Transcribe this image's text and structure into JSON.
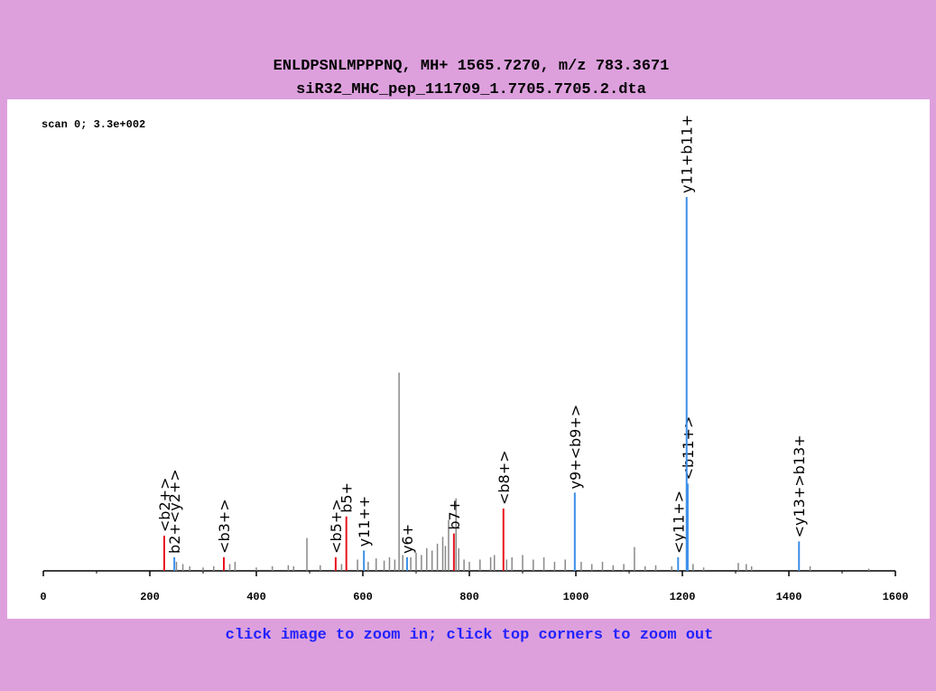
{
  "chart_data": {
    "type": "spectrum",
    "title": "ENLDPSNLMPPPNQ, MH+ 1565.7270, m/z 783.3671",
    "subtitle": "siR32_MHC_pep_111709_1.7705.7705.2.dta",
    "annotation": "scan 0; 3.3e+002",
    "footer": "click image to zoom in; click top corners to zoom out",
    "xlim": [
      0,
      1600
    ],
    "ylim": [
      0,
      330
    ],
    "xticks": [
      0,
      200,
      400,
      600,
      800,
      1000,
      1200,
      1400,
      1600
    ],
    "minor_xticks": [
      100,
      300,
      500,
      700,
      900,
      1100,
      1300,
      1500
    ],
    "x": [
      250,
      262,
      275,
      300,
      320,
      350,
      360,
      400,
      430,
      460,
      470,
      495,
      520,
      560,
      590,
      610,
      625,
      640,
      650,
      660,
      668,
      675,
      690,
      700,
      710,
      720,
      730,
      740,
      750,
      755,
      761,
      775,
      780,
      790,
      800,
      820,
      840,
      847,
      870,
      880,
      900,
      920,
      940,
      960,
      980,
      1010,
      1030,
      1050,
      1070,
      1090,
      1110,
      1130,
      1150,
      1180,
      1220,
      1240,
      1305,
      1320,
      1330,
      1440,
      1550,
      227,
      246,
      339,
      549,
      569,
      602,
      683,
      771,
      864,
      998,
      1192,
      1210,
      1208,
      1419
    ],
    "values": [
      8,
      6,
      4,
      3,
      4,
      6,
      8,
      3,
      4,
      5,
      4,
      29,
      5,
      6,
      10,
      8,
      11,
      9,
      12,
      10,
      175,
      14,
      12,
      16,
      14,
      20,
      18,
      24,
      30,
      22,
      45,
      64,
      20,
      10,
      8,
      10,
      12,
      14,
      10,
      12,
      14,
      10,
      12,
      8,
      10,
      8,
      6,
      8,
      5,
      6,
      21,
      4,
      5,
      4,
      6,
      3,
      7,
      6,
      4,
      4,
      2,
      31,
      12,
      12,
      12,
      48,
      18,
      12,
      33,
      55,
      69,
      12,
      77,
      330,
      26
    ],
    "colors": [
      "#888888",
      "#888888",
      "#888888",
      "#888888",
      "#888888",
      "#888888",
      "#888888",
      "#888888",
      "#888888",
      "#888888",
      "#888888",
      "#888888",
      "#888888",
      "#888888",
      "#888888",
      "#888888",
      "#888888",
      "#888888",
      "#888888",
      "#888888",
      "#888888",
      "#888888",
      "#888888",
      "#888888",
      "#888888",
      "#888888",
      "#888888",
      "#888888",
      "#888888",
      "#888888",
      "#888888",
      "#888888",
      "#888888",
      "#888888",
      "#888888",
      "#888888",
      "#888888",
      "#888888",
      "#888888",
      "#888888",
      "#888888",
      "#888888",
      "#888888",
      "#888888",
      "#888888",
      "#888888",
      "#888888",
      "#888888",
      "#888888",
      "#888888",
      "#888888",
      "#888888",
      "#888888",
      "#888888",
      "#888888",
      "#888888",
      "#888888",
      "#888888",
      "#888888",
      "#888888",
      "#888888",
      "#e8141e",
      "#3d8fe8",
      "#e8141e",
      "#e8141e",
      "#e8141e",
      "#3d8fe8",
      "#3d8fe8",
      "#e8141e",
      "#e8141e",
      "#3d8fe8",
      "#3d8fe8",
      "#3d8fe8",
      "#3d8fe8",
      "#3d8fe8"
    ],
    "labels": [
      null,
      null,
      null,
      null,
      null,
      null,
      null,
      null,
      null,
      null,
      null,
      null,
      null,
      null,
      null,
      null,
      null,
      null,
      null,
      null,
      null,
      null,
      null,
      null,
      null,
      null,
      null,
      null,
      null,
      null,
      null,
      null,
      null,
      null,
      null,
      null,
      null,
      null,
      null,
      null,
      null,
      null,
      null,
      null,
      null,
      null,
      null,
      null,
      null,
      null,
      null,
      null,
      null,
      null,
      null,
      null,
      null,
      null,
      null,
      null,
      null,
      "<b2+>",
      "b2+<y2+>",
      "<b3+>",
      "<b5+>",
      "b5+",
      "y11++",
      "y6+",
      "b7+",
      "<b8+>",
      "y9+<b9+>",
      "<y11+>",
      "<b11+>",
      "y11+b11+",
      "<y13+>b13+"
    ]
  }
}
